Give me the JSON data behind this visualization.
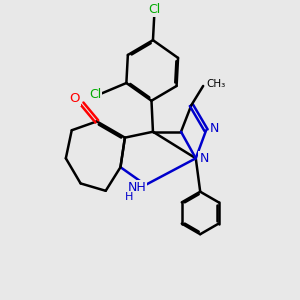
{
  "bg_color": "#e8e8e8",
  "bond_color": "#000000",
  "n_color": "#0000cc",
  "o_color": "#ff0000",
  "cl_color": "#00aa00",
  "figsize": [
    3.0,
    3.0
  ],
  "dpi": 100,
  "xlim": [
    0,
    10
  ],
  "ylim": [
    0,
    10
  ]
}
